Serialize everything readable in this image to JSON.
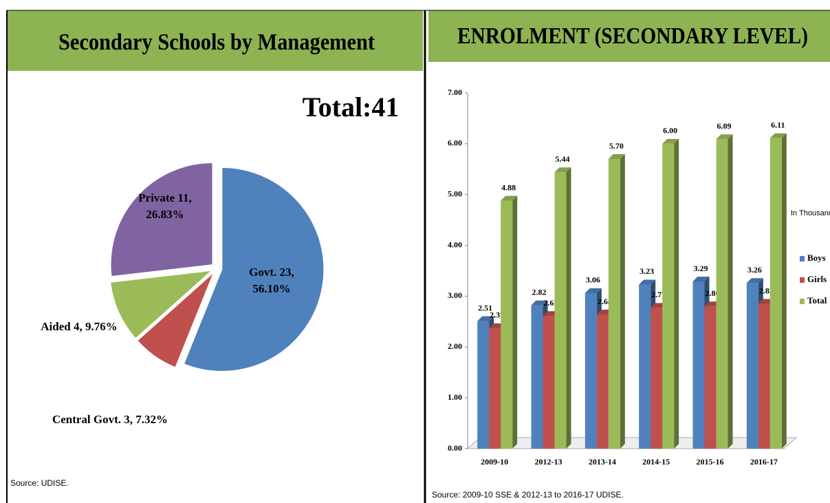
{
  "chart_data": [
    {
      "type": "pie",
      "title": "Secondary Schools by Management",
      "annotation": "Total:41",
      "values": [
        23,
        3,
        4,
        11
      ],
      "value_labels": [
        "Govt. 23, 56.10%",
        "Central Govt. 3, 7.32%",
        "Aided 4, 9.76%",
        "Private 11, 26.83%"
      ],
      "colors": [
        "#4f81bd",
        "#c0504d",
        "#9bbb59",
        "#8064a2"
      ],
      "source": "Source: UDISE."
    },
    {
      "type": "bar",
      "title": "ENROLMENT (SECONDARY LEVEL)",
      "annotation": "In Thousands",
      "categories": [
        "2009-10",
        "2012-13",
        "2013-14",
        "2014-15",
        "2015-16",
        "2016-17"
      ],
      "series": [
        {
          "name": "Boys",
          "color": "#4f81bd",
          "values": [
            2.51,
            2.82,
            3.06,
            3.23,
            3.29,
            3.26
          ],
          "value_labels": [
            "2.51",
            "2.82",
            "3.06",
            "3.23",
            "3.29",
            "3.26"
          ]
        },
        {
          "name": "Girls",
          "color": "#c0504d",
          "values": [
            2.37,
            2.61,
            2.64,
            2.77,
            2.8,
            2.85
          ],
          "value_labels": [
            "2.37",
            "2.61",
            "2.64",
            "2.77",
            "2.80",
            "2.85"
          ]
        },
        {
          "name": "Total",
          "color": "#9bbb59",
          "values": [
            4.88,
            5.44,
            5.7,
            6.0,
            6.09,
            6.11
          ],
          "value_labels": [
            "4.88",
            "5.44",
            "5.70",
            "6.00",
            "6.09",
            "6.11"
          ]
        }
      ],
      "ylim": [
        0,
        7
      ],
      "yticks": [
        {
          "value": 0,
          "label": "0.00"
        },
        {
          "value": 1,
          "label": "1.00"
        },
        {
          "value": 2,
          "label": "2.00"
        },
        {
          "value": 3,
          "label": "3.00"
        },
        {
          "value": 4,
          "label": "4.00"
        },
        {
          "value": 5,
          "label": "5.00"
        },
        {
          "value": 6,
          "label": "6.00"
        },
        {
          "value": 7,
          "label": "7.00"
        }
      ],
      "legend": "right",
      "source": "Source:  2009-10 SSE & 2012-13 to 2016-17  UDISE."
    }
  ]
}
